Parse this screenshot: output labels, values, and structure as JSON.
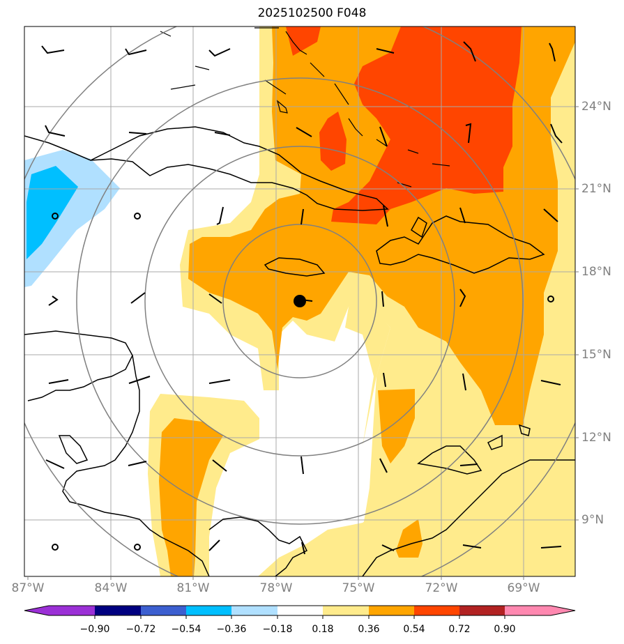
{
  "title": "2025102500 F048",
  "lat_labels": [
    "24°N",
    "21°N",
    "18°N",
    "15°N",
    "12°N",
    "9°N"
  ],
  "lon_labels": [
    "87°W",
    "84°W",
    "81°W",
    "78°W",
    "75°W",
    "72°W",
    "69°W"
  ],
  "colorbar": {
    "labels": [
      "−0.90",
      "−0.72",
      "−0.54",
      "−0.36",
      "−0.18",
      "0.18",
      "0.36",
      "0.54",
      "0.72",
      "0.90"
    ],
    "colors": [
      "#9b30d6",
      "#000080",
      "#3c5fd0",
      "#00bfff",
      "#b0e0ff",
      "#ffffff",
      "#ffeb8c",
      "#ffa500",
      "#ff4500",
      "#b22222",
      "#ff88b0"
    ]
  },
  "colors": {
    "light_yellow": "#ffeb8c",
    "orange": "#ffa500",
    "red_orange": "#ff4500",
    "light_blue": "#b0e0ff",
    "deep_sky_blue": "#00bfff",
    "grid": "#a9a9a9",
    "range_rings": "#808080"
  }
}
